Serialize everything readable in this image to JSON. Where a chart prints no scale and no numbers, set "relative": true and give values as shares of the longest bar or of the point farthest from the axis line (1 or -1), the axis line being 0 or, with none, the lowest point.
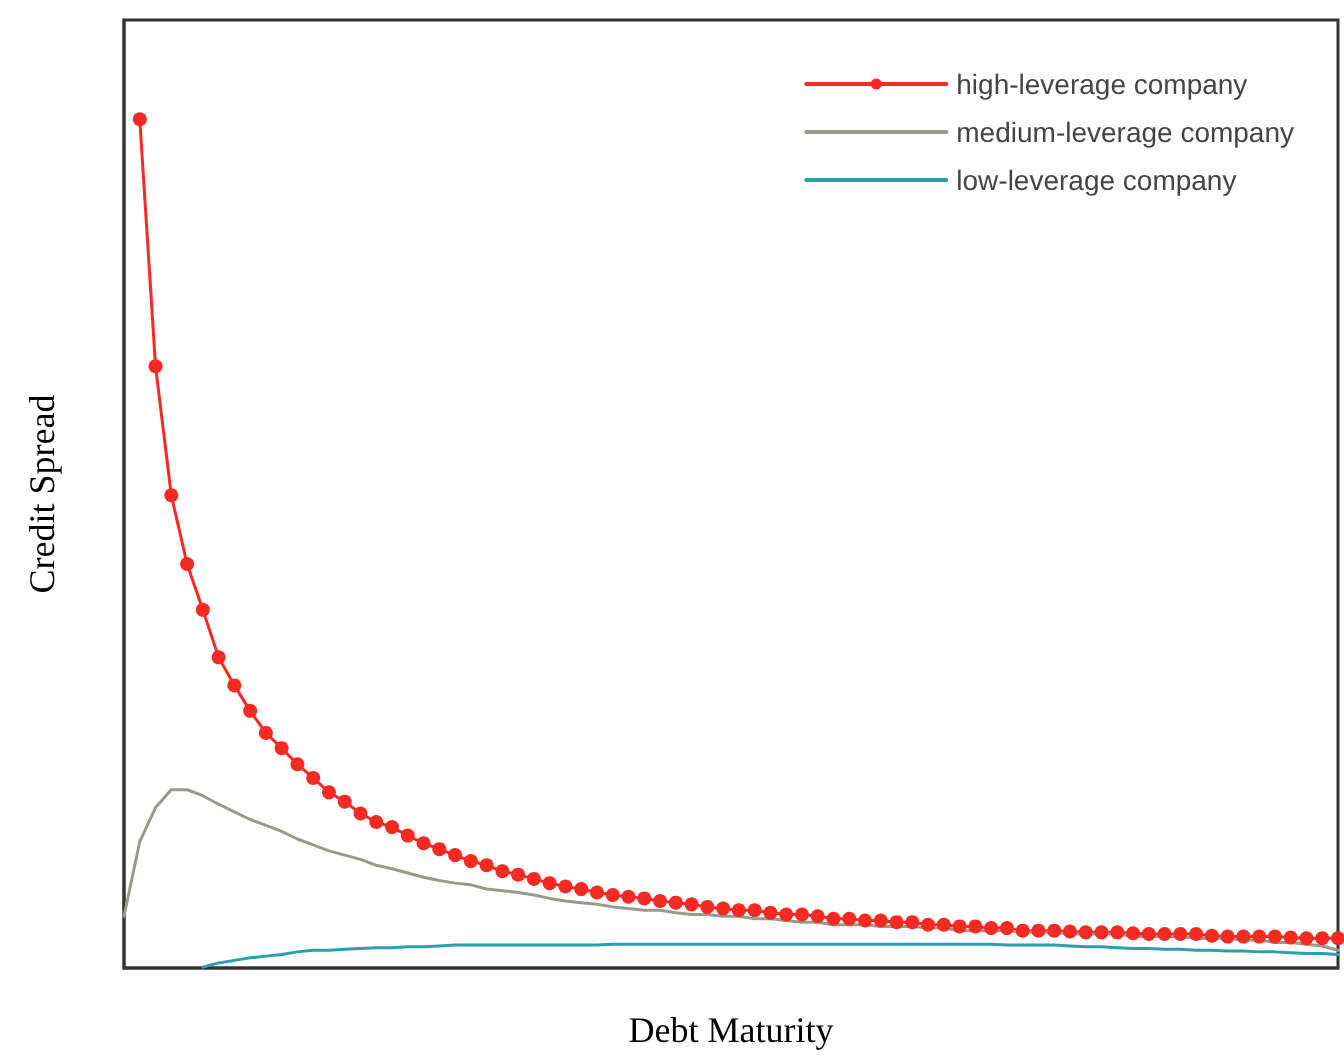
{
  "chart_data": {
    "type": "line",
    "relative": true,
    "xlabel": "Debt Maturity",
    "ylabel": "Credit Spread",
    "legend": "top right",
    "grid": false,
    "line_style": "solid",
    "categories": [
      null,
      null,
      null,
      null,
      null,
      null,
      null,
      null,
      null,
      null,
      null,
      null,
      null,
      null,
      null,
      null,
      null,
      null,
      null,
      null,
      null,
      null,
      null,
      null,
      null,
      null,
      null,
      null,
      null,
      null,
      null,
      null,
      null,
      null,
      null,
      null,
      null,
      null,
      null,
      null,
      null,
      null,
      null,
      null,
      null,
      null,
      null,
      null,
      null,
      null,
      null,
      null,
      null,
      null,
      null,
      null,
      null,
      null,
      null,
      null,
      null,
      null,
      null,
      null,
      null,
      null,
      null,
      null,
      null,
      null,
      null,
      null,
      null,
      null,
      null,
      null,
      null,
      null
    ],
    "series": [
      {
        "name": "high-leverage company",
        "color": "#f52a22",
        "marker": "circle",
        "values": [
          null,
          1,
          0.709,
          0.557,
          0.476,
          0.422,
          0.366,
          0.333,
          0.303,
          0.277,
          0.259,
          0.24,
          0.224,
          0.207,
          0.196,
          0.182,
          0.172,
          0.166,
          0.156,
          0.147,
          0.14,
          0.133,
          0.126,
          0.121,
          0.114,
          0.11,
          0.105,
          0.1,
          0.096,
          0.093,
          0.089,
          0.086,
          0.084,
          0.082,
          0.079,
          0.077,
          0.075,
          0.072,
          0.07,
          0.068,
          0.068,
          0.065,
          0.063,
          0.063,
          0.061,
          0.058,
          0.058,
          0.056,
          0.056,
          0.054,
          0.054,
          0.051,
          0.051,
          0.049,
          0.049,
          0.047,
          0.047,
          0.044,
          0.044,
          0.044,
          0.043,
          0.042,
          0.042,
          0.042,
          0.041,
          0.04,
          0.04,
          0.04,
          0.04,
          0.038,
          0.037,
          0.037,
          0.037,
          0.037,
          0.036,
          0.035,
          0.035,
          0.035
        ]
      },
      {
        "name": "medium-leverage company",
        "color": "#9a9a8c",
        "marker": "none",
        "values": [
          0.061,
          0.149,
          0.189,
          0.21,
          0.21,
          0.203,
          0.193,
          0.184,
          0.175,
          0.168,
          0.161,
          0.152,
          0.145,
          0.138,
          0.133,
          0.128,
          0.121,
          0.117,
          0.112,
          0.107,
          0.103,
          0.1,
          0.098,
          0.093,
          0.091,
          0.089,
          0.086,
          0.082,
          0.079,
          0.077,
          0.075,
          0.072,
          0.07,
          0.068,
          0.068,
          0.065,
          0.063,
          0.063,
          0.061,
          0.061,
          0.058,
          0.058,
          0.056,
          0.054,
          0.054,
          0.051,
          0.051,
          0.051,
          0.049,
          0.049,
          0.049,
          0.047,
          0.047,
          0.044,
          0.044,
          0.044,
          0.044,
          0.042,
          0.042,
          0.042,
          0.04,
          0.04,
          0.04,
          0.04,
          0.037,
          0.037,
          0.037,
          0.037,
          0.035,
          0.035,
          0.035,
          0.033,
          0.033,
          0.03,
          0.03,
          0.028,
          0.026,
          0.021
        ]
      },
      {
        "name": "low-leverage company",
        "color": "#2a9fb0",
        "marker": "none",
        "values": [
          null,
          null,
          null,
          null,
          null,
          0.001,
          0.006,
          0.009,
          0.012,
          0.014,
          0.016,
          0.019,
          0.021,
          0.021,
          0.022,
          0.023,
          0.024,
          0.024,
          0.025,
          0.025,
          0.026,
          0.027,
          0.027,
          0.027,
          0.027,
          0.027,
          0.027,
          0.027,
          0.027,
          0.027,
          0.027,
          0.028,
          0.028,
          0.028,
          0.028,
          0.028,
          0.028,
          0.028,
          0.028,
          0.028,
          0.028,
          0.028,
          0.028,
          0.028,
          0.028,
          0.028,
          0.028,
          0.028,
          0.028,
          0.028,
          0.028,
          0.028,
          0.028,
          0.028,
          0.028,
          0.028,
          0.027,
          0.027,
          0.027,
          0.027,
          0.026,
          0.025,
          0.025,
          0.024,
          0.023,
          0.023,
          0.022,
          0.022,
          0.021,
          0.021,
          0.02,
          0.02,
          0.019,
          0.019,
          0.018,
          0.017,
          0.017,
          0.016
        ]
      }
    ]
  }
}
